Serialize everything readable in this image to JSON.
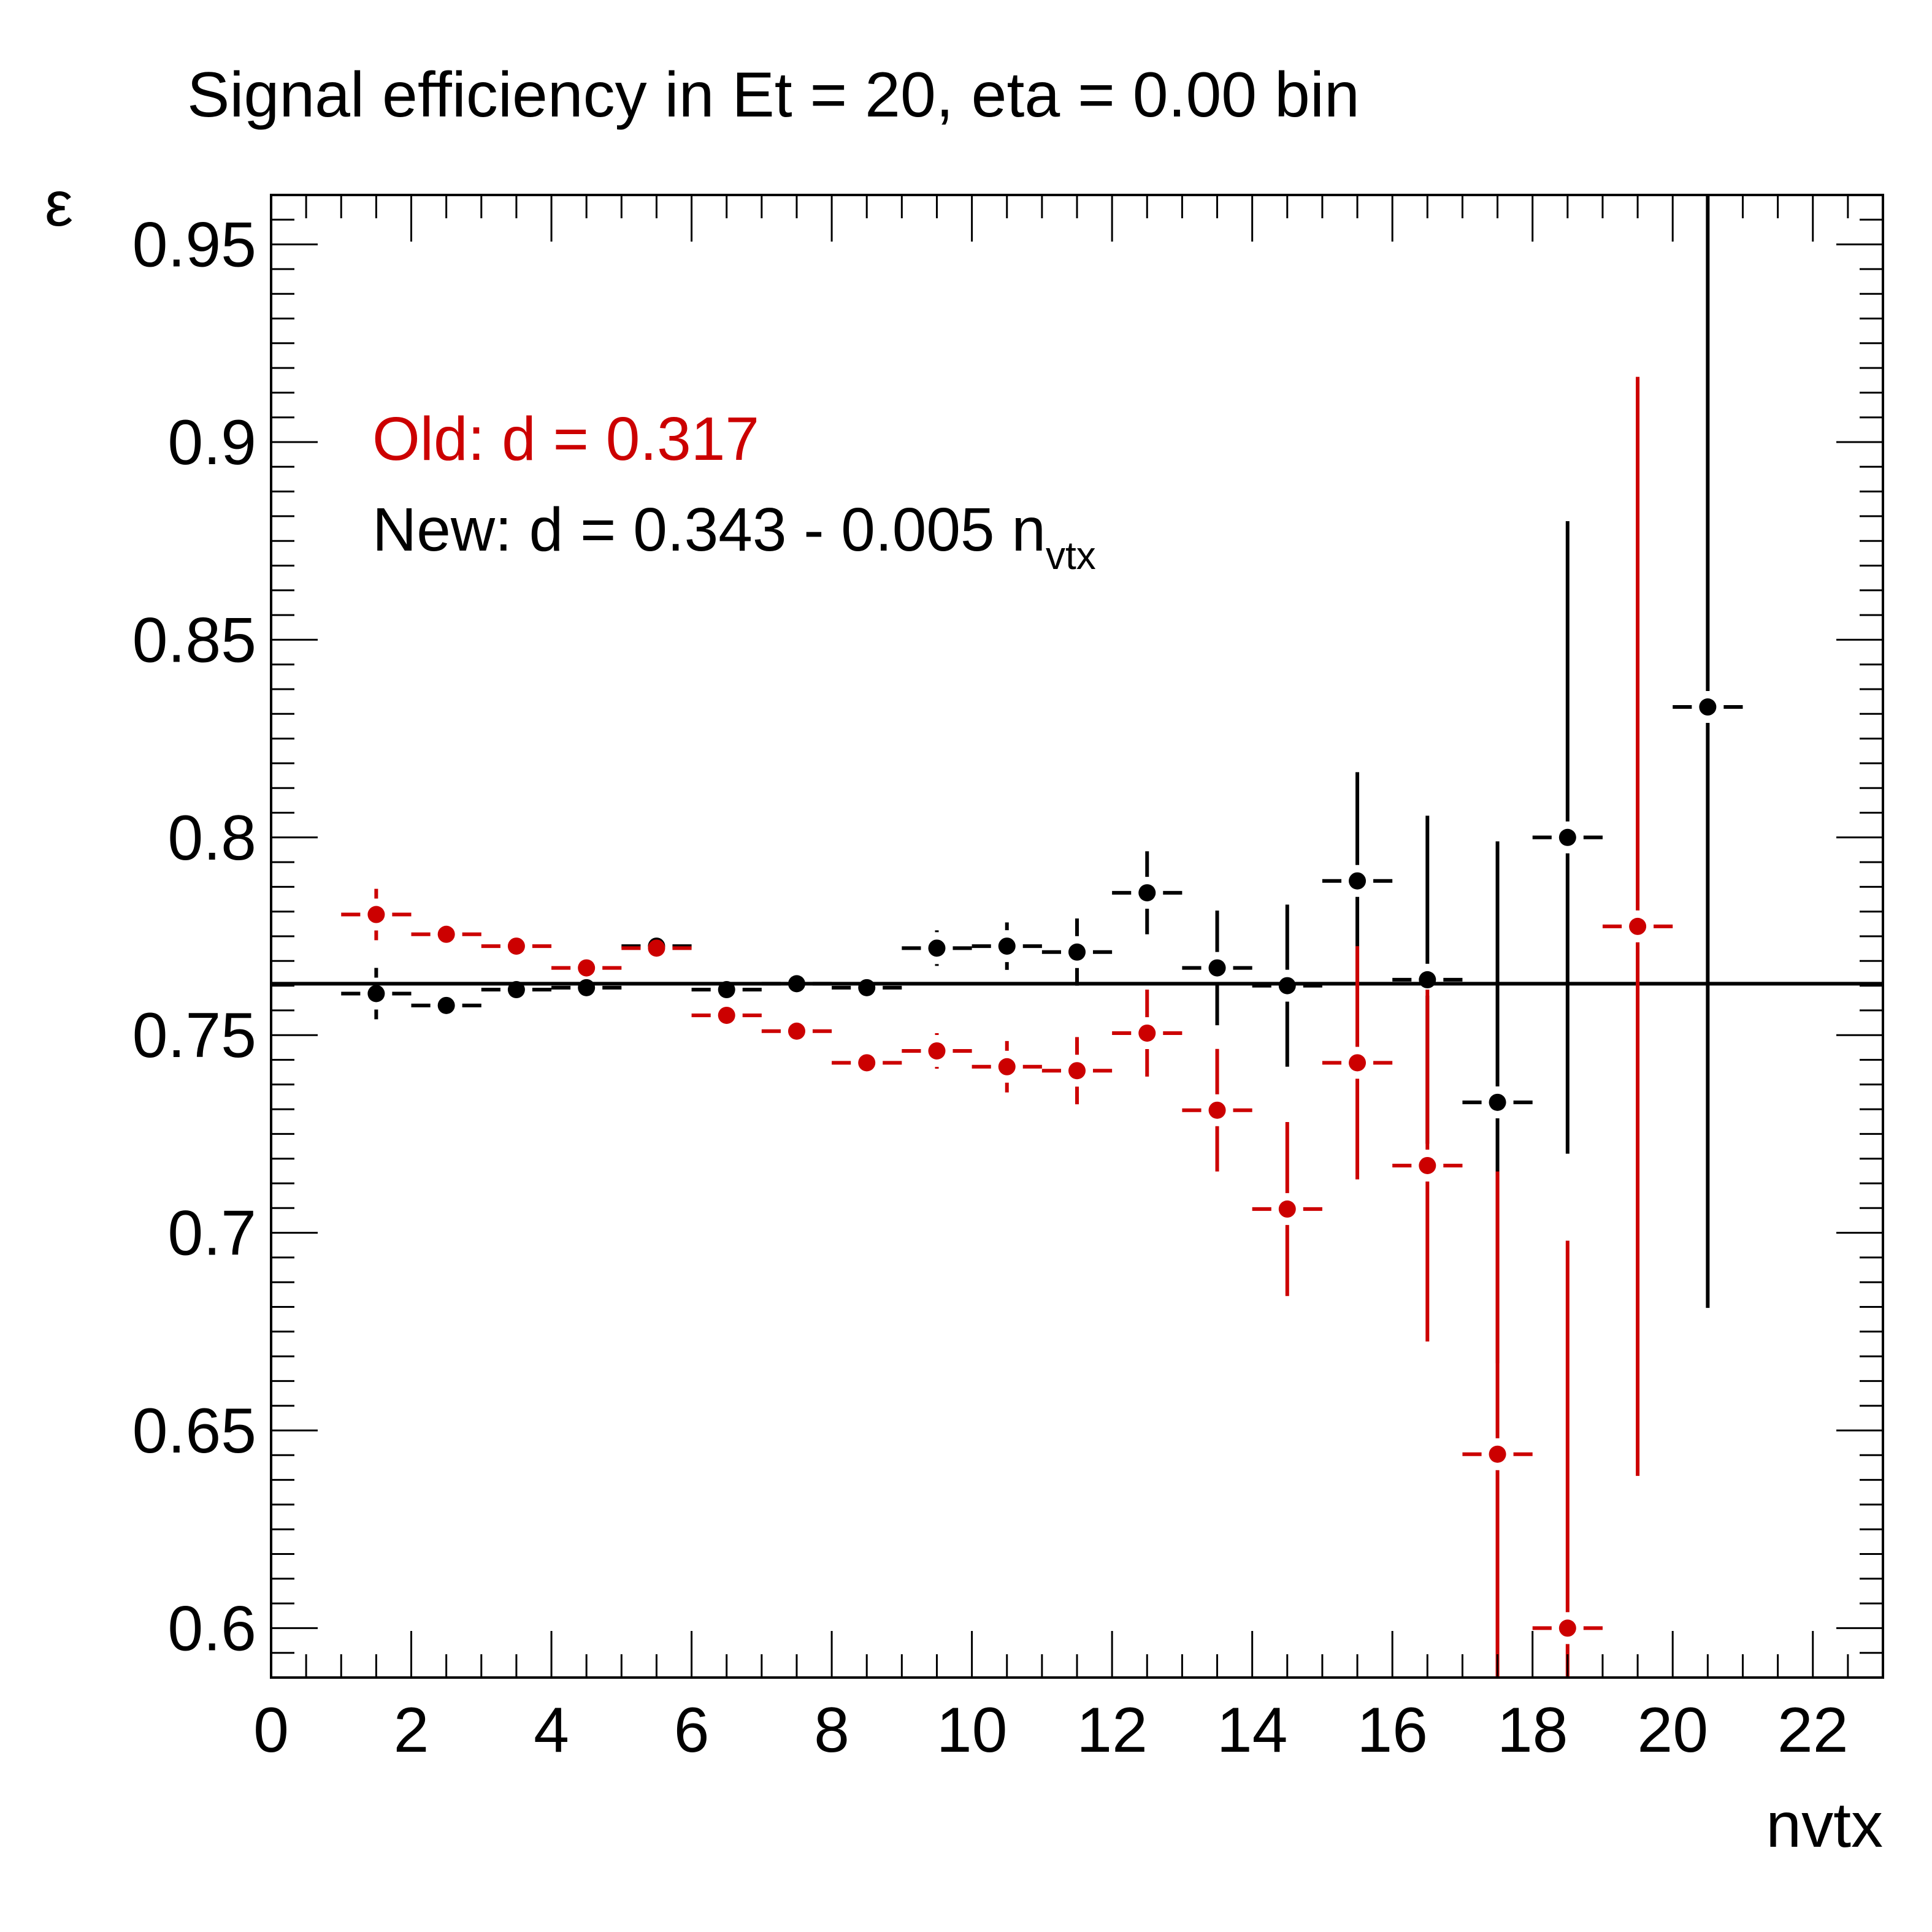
{
  "chart_data": {
    "type": "scatter",
    "title": "Signal efficiency in Et = 20, eta = 0.00 bin",
    "xlabel": "nvtx",
    "ylabel": "ε",
    "xlim": [
      0,
      23
    ],
    "ylim": [
      0.5875,
      0.9625
    ],
    "x_ticks": [
      0,
      2,
      4,
      6,
      8,
      10,
      12,
      14,
      16,
      18,
      20,
      22
    ],
    "y_ticks": [
      0.6,
      0.65,
      0.7,
      0.75,
      0.8,
      0.85,
      0.9,
      0.95
    ],
    "x_tick_labels": [
      "0",
      "2",
      "4",
      "6",
      "8",
      "10",
      "12",
      "14",
      "16",
      "18",
      "20",
      "22"
    ],
    "y_tick_labels": [
      "0.6",
      "0.65",
      "0.7",
      "0.75",
      "0.8",
      "0.85",
      "0.9",
      "0.95"
    ],
    "reference_line": {
      "y": 0.763,
      "color": "#000000"
    },
    "legend": {
      "old": {
        "text": "Old: d = 0.317",
        "color": "#cc0000"
      },
      "new": {
        "text": "New: d = 0.343 - 0.005 n",
        "subscript": "vtx",
        "color": "#000000"
      }
    },
    "series": [
      {
        "key": "new",
        "color": "#000000",
        "x": [
          1.5,
          2.5,
          3.5,
          4.5,
          5.5,
          6.5,
          7.5,
          8.5,
          9.5,
          10.5,
          11.5,
          12.5,
          13.5,
          14.5,
          15.5,
          16.5,
          17.5,
          18.5,
          20.5
        ],
        "y": [
          0.7605,
          0.7575,
          0.7615,
          0.762,
          0.7725,
          0.7615,
          0.763,
          0.762,
          0.772,
          0.7725,
          0.771,
          0.786,
          0.767,
          0.7625,
          0.789,
          0.764,
          0.733,
          0.8,
          0.833
        ],
        "y_err": [
          0.0065,
          0.0015,
          0.0015,
          0.001,
          0.001,
          0.001,
          0.0015,
          0.0015,
          0.0045,
          0.006,
          0.0085,
          0.0105,
          0.0145,
          0.0205,
          0.0275,
          0.0415,
          0.066,
          0.08,
          0.152
        ]
      },
      {
        "key": "old",
        "color": "#cc0000",
        "x": [
          1.5,
          2.5,
          3.5,
          4.5,
          5.5,
          6.5,
          7.5,
          8.5,
          9.5,
          10.5,
          11.5,
          12.5,
          13.5,
          14.5,
          15.5,
          16.5,
          17.5,
          18.5,
          19.5
        ],
        "y": [
          0.7805,
          0.7755,
          0.7725,
          0.767,
          0.772,
          0.755,
          0.751,
          0.743,
          0.746,
          0.742,
          0.741,
          0.7505,
          0.731,
          0.706,
          0.743,
          0.717,
          0.644,
          0.6,
          0.7775
        ],
        "y_err": [
          0.0065,
          0.0015,
          0.0015,
          0.0015,
          0.001,
          0.0015,
          0.0015,
          0.0015,
          0.0045,
          0.0065,
          0.0085,
          0.011,
          0.0155,
          0.022,
          0.0295,
          0.0445,
          0.0715,
          0.098,
          0.139
        ]
      }
    ]
  }
}
